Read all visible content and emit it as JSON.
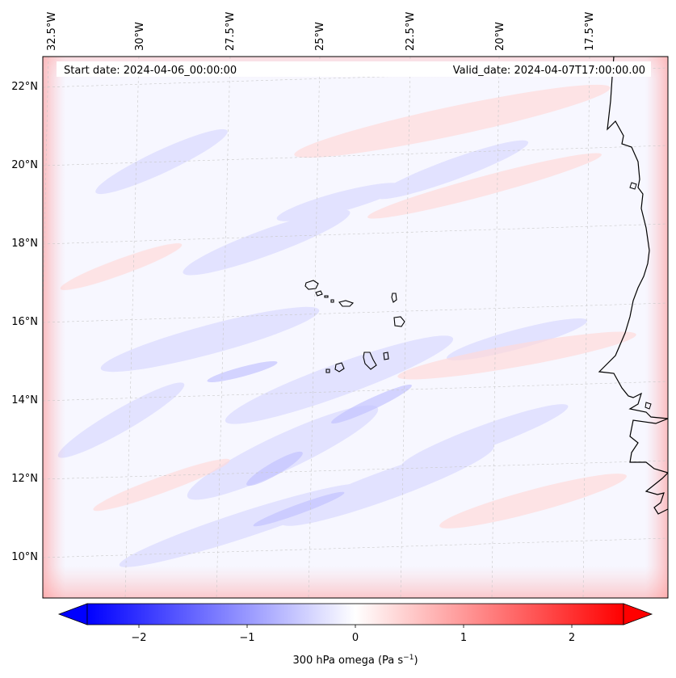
{
  "map": {
    "start_date": "Start date: 2024-04-06_00:00:00",
    "valid_date": "Valid_date: 2024-04-07T17:00:00.00",
    "lon_labels": [
      "32.5°W",
      "30°W",
      "27.5°W",
      "25°W",
      "22.5°W",
      "20°W",
      "17.5°W"
    ],
    "lat_labels": [
      "22°N",
      "20°N",
      "18°N",
      "16°N",
      "14°N",
      "12°N",
      "10°N"
    ],
    "extent": {
      "lon_min": -33.0,
      "lon_max": -15.5,
      "lat_min": 8.8,
      "lat_max": 22.8
    },
    "field_variable": "300 hPa omega",
    "colormap": "bwr"
  },
  "colorbar": {
    "title": "300 hPa omega (Pa s",
    "title_sup": "−1",
    "title_close": ")",
    "ticks": [
      "−2",
      "−1",
      "0",
      "1",
      "2"
    ],
    "tick_values": [
      -2,
      -1,
      0,
      1,
      2
    ],
    "range": [
      -2.75,
      2.75
    ],
    "extend": "both",
    "colors": {
      "min": "#0000ff",
      "mid": "#ffffff",
      "max": "#ff0000"
    }
  }
}
